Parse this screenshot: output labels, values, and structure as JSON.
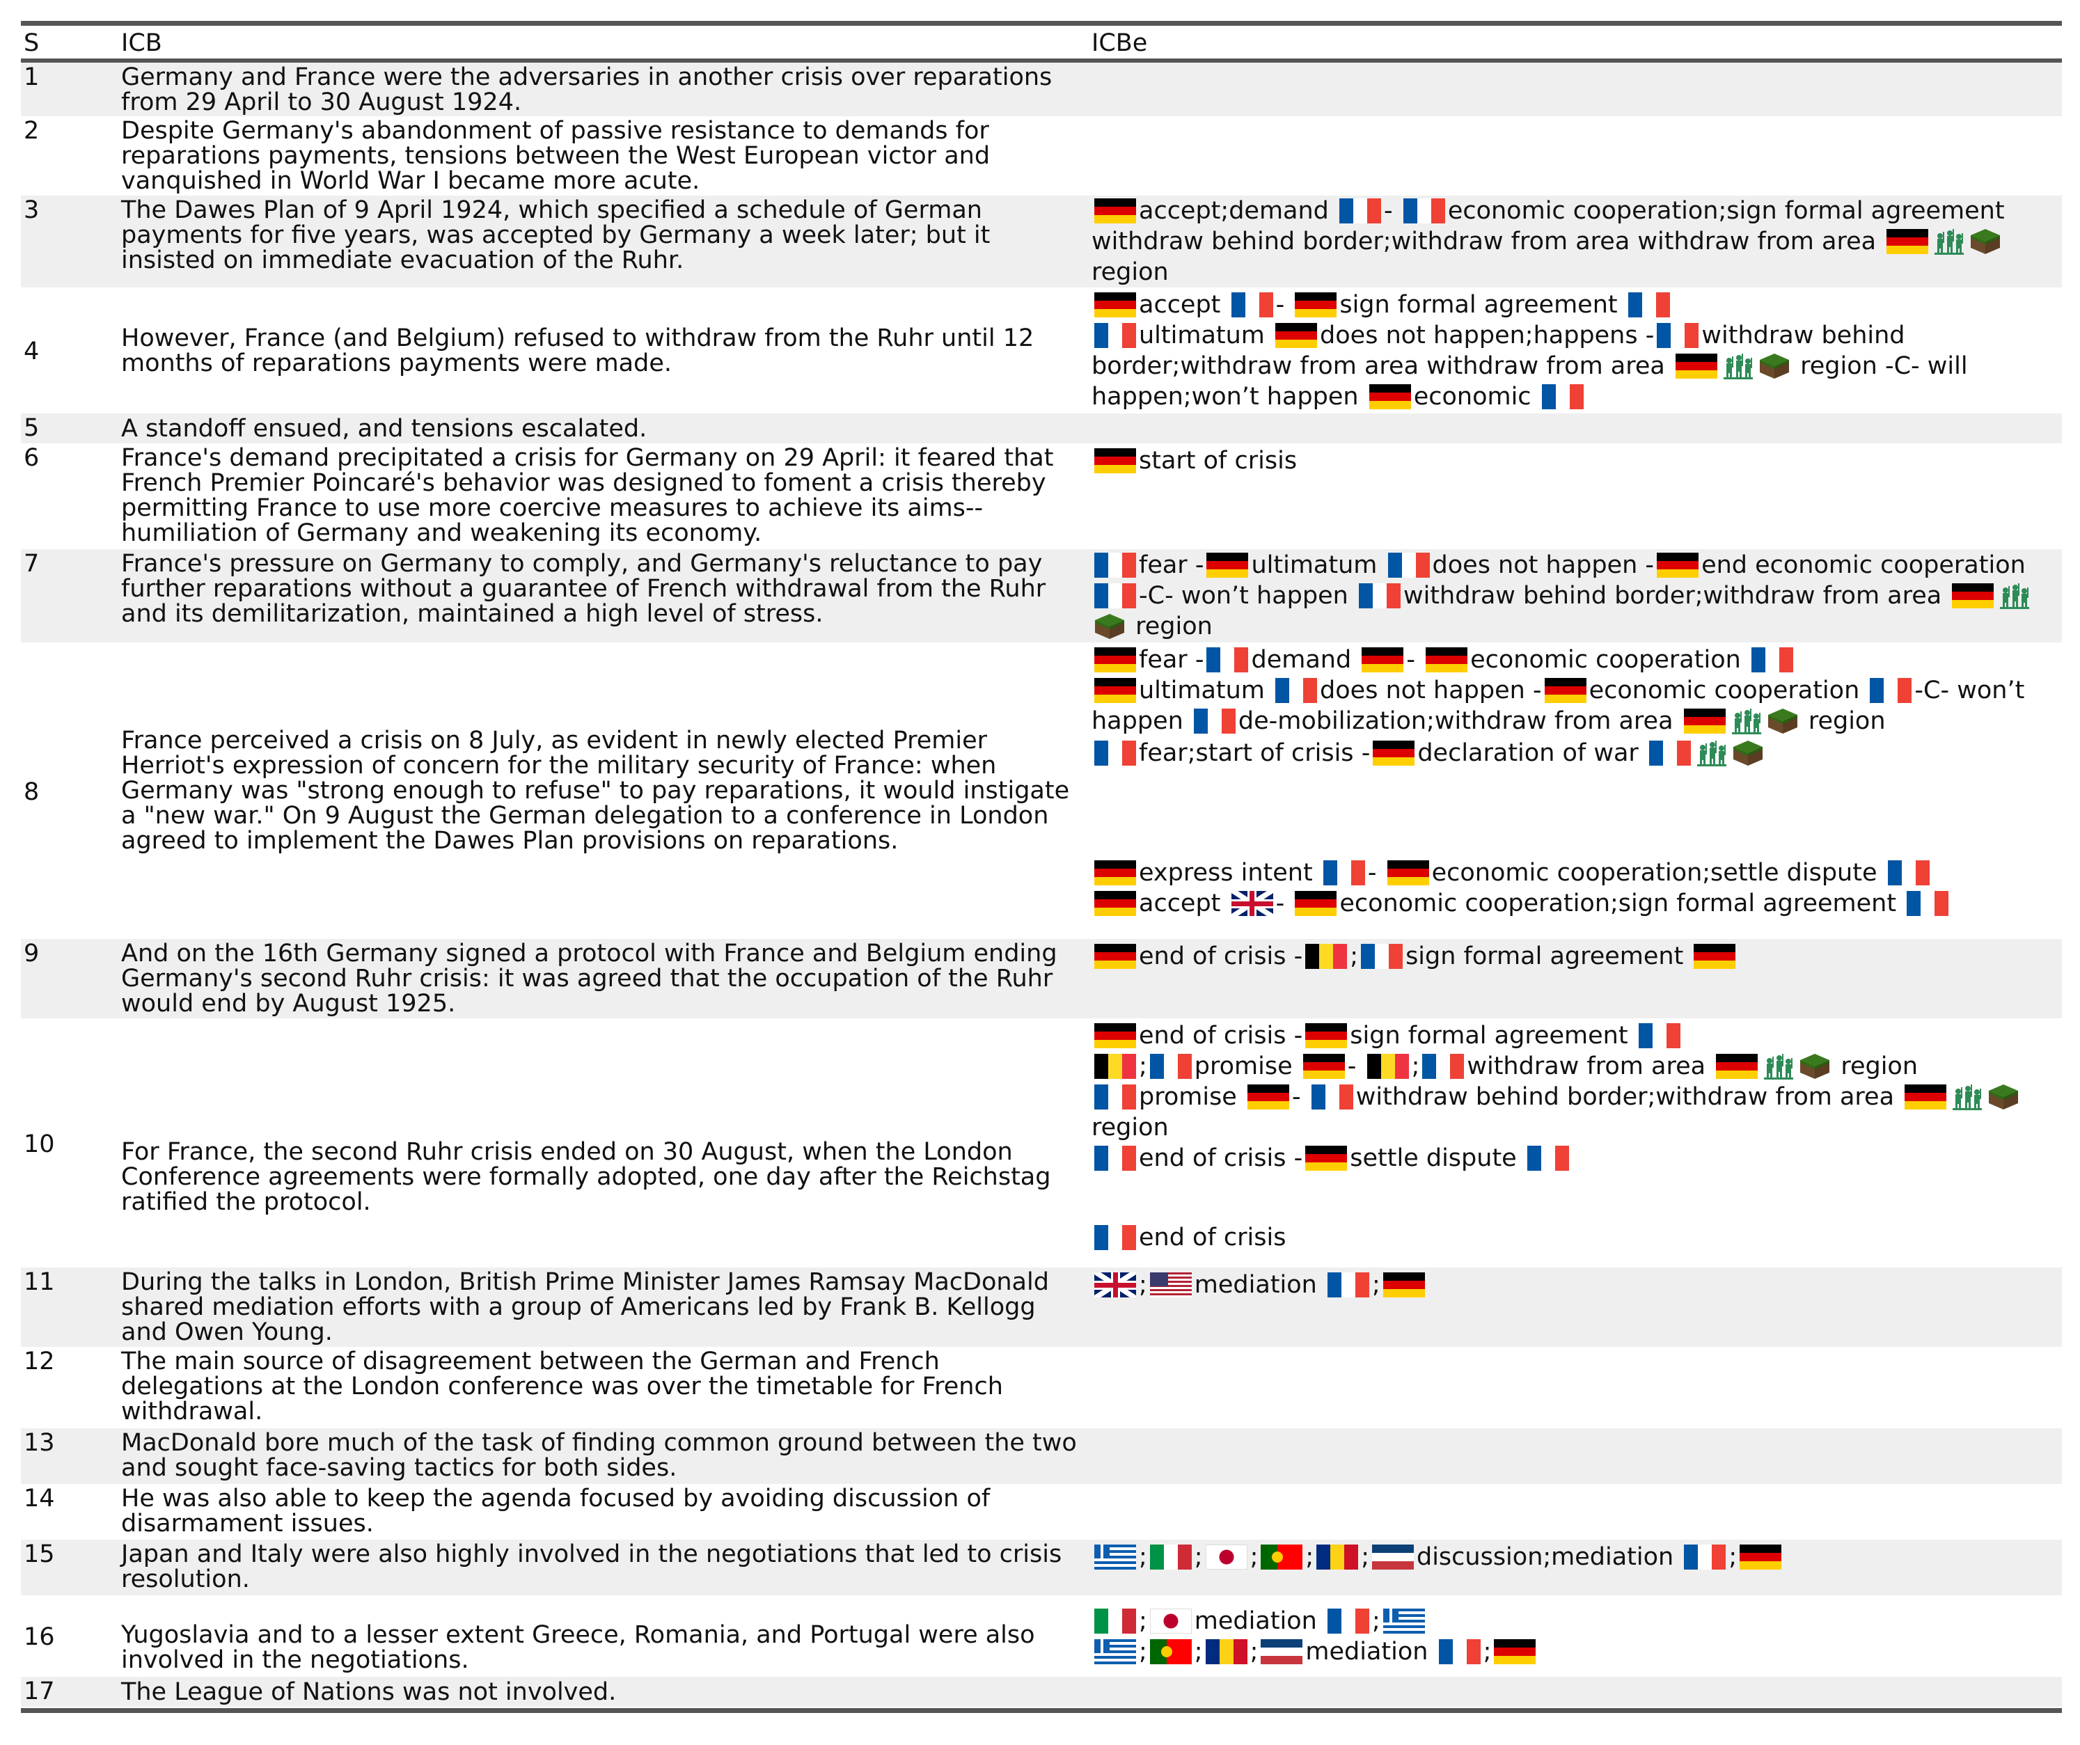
{
  "header": {
    "s": "S",
    "icb": "ICB",
    "icbe": "ICBe"
  },
  "tokens": {
    "dash": "-",
    "semi": ";",
    "region": "region",
    "will_happen": "-C- will happen;won’t happen",
    "c_wont": "-C- won’t happen"
  },
  "rows": [
    {
      "s": "1",
      "icb": "Germany and France were the adversaries in another crisis over reparations from 29 April to 30 August 1924."
    },
    {
      "s": "2",
      "icb": "Despite Germany's abandonment of passive resistance to demands for reparations payments, tensions between the West European victor and vanquished in World War I became more acute."
    },
    {
      "s": "3",
      "icb": "The Dawes Plan of 9 April 1924, which specified a schedule of German payments for five years, was accepted by Germany a week later; but it insisted on immediate evacuation of the Ruhr."
    },
    {
      "s": "4",
      "icb": "However, France (and Belgium) refused to withdraw from the Ruhr until 12 months of reparations payments were made."
    },
    {
      "s": "5",
      "icb": "A standoff ensued, and tensions escalated."
    },
    {
      "s": "6",
      "icb": "France's demand precipitated a crisis for Germany on 29 April: it feared that French Premier Poincaré's behavior was designed to foment a crisis thereby permitting France to use more coercive measures to achieve its aims--humiliation of Germany and weakening its economy."
    },
    {
      "s": "7",
      "icb": "France's pressure on Germany to comply, and Germany's reluctance to pay further reparations without a guarantee of French withdrawal from the Ruhr and its demilitarization, maintained a high level of stress."
    },
    {
      "s": "8",
      "icb": "France perceived a crisis on 8 July, as evident in newly elected Premier Herriot's expression of concern for the military security of France: when Germany was \"strong enough to refuse\" to pay reparations, it would instigate a \"new war.\" On 9 August the German delegation to a conference in London agreed to implement the Dawes Plan provisions on reparations."
    },
    {
      "s": "9",
      "icb": "And on the 16th Germany signed a protocol with France and Belgium ending Germany's second Ruhr crisis: it was agreed that the occupation of the Ruhr would end by August 1925."
    },
    {
      "s": "10",
      "icb": "For France, the second Ruhr crisis ended on 30 August, when the London Conference agreements were formally adopted, one day after the Reichstag ratified the protocol."
    },
    {
      "s": "11",
      "icb": "During the talks in London, British Prime Minister James Ramsay MacDonald shared mediation efforts with a group of Americans led by Frank B. Kellogg and Owen Young."
    },
    {
      "s": "12",
      "icb": "The main source of disagreement between the German and French delegations at the London conference was over the timetable for French withdrawal."
    },
    {
      "s": "13",
      "icb": "MacDonald bore much of the task of finding common ground between the two and sought face-saving tactics for both sides."
    },
    {
      "s": "14",
      "icb": "He was also able to keep the agenda focused by avoiding discussion of disarmament issues."
    },
    {
      "s": "15",
      "icb": "Japan and Italy were also highly involved in the negotiations that led to crisis resolution."
    },
    {
      "s": "16",
      "icb": "Yugoslavia and to a lesser extent Greece, Romania, and Portugal were also involved in the negotiations."
    },
    {
      "s": "17",
      "icb": "The League of Nations was not involved."
    }
  ],
  "events": {
    "r3": {
      "a": "accept;demand",
      "b": "economic cooperation;sign formal agreement withdraw behind border;withdraw from area withdraw from area"
    },
    "r4": {
      "a": "accept",
      "b": "sign formal agreement",
      "c": "ultimatum",
      "d": "does not happen;happens",
      "e": "withdraw behind border;withdraw from area withdraw from area",
      "f": "economic"
    },
    "r6": {
      "a": "start of crisis"
    },
    "r7": {
      "a": "fear",
      "b": "ultimatum",
      "c": "does not happen",
      "d": "end economic cooperation",
      "e": "withdraw behind border;withdraw from area"
    },
    "r8": {
      "a": "fear",
      "b": "demand",
      "c": "economic cooperation",
      "d": "ultimatum",
      "e": "does not happen",
      "f": "economic cooperation",
      "g": "de-mobilization;withdraw from area",
      "h": "fear;start of crisis",
      "i": "declaration of war",
      "j": "express intent",
      "k": "economic cooperation;settle dispute",
      "l": "accept",
      "m": "economic cooperation;sign formal agreement"
    },
    "r9": {
      "a": "end of crisis",
      "b": "sign formal agreement"
    },
    "r10": {
      "a": "end of crisis",
      "b": "sign formal agreement",
      "c": "promise",
      "d": "withdraw from area",
      "e": "promise",
      "f": "withdraw behind border;withdraw from area",
      "g": "end of crisis",
      "h": "settle dispute",
      "i": "end of crisis"
    },
    "r11": {
      "a": "mediation"
    },
    "r15": {
      "a": "discussion;mediation"
    },
    "r16": {
      "a": "mediation",
      "b": "mediation"
    }
  },
  "icons": {
    "de": "flag-germany",
    "fr": "flag-france",
    "be": "flag-belgium",
    "gb": "flag-united-kingdom",
    "us": "flag-united-states",
    "gr": "flag-greece",
    "it": "flag-italy",
    "jp": "flag-japan",
    "pt": "flag-portugal",
    "ro": "flag-romania",
    "yu": "flag-yugoslavia",
    "soldiers": "soldiers-icon",
    "land": "land-block-icon"
  },
  "colors": {
    "rule": "#555555",
    "shade": "#efefef",
    "soldiers": "#2e8b57",
    "land_top": "#3a7a1e",
    "land_side": "#6b4a2b"
  }
}
